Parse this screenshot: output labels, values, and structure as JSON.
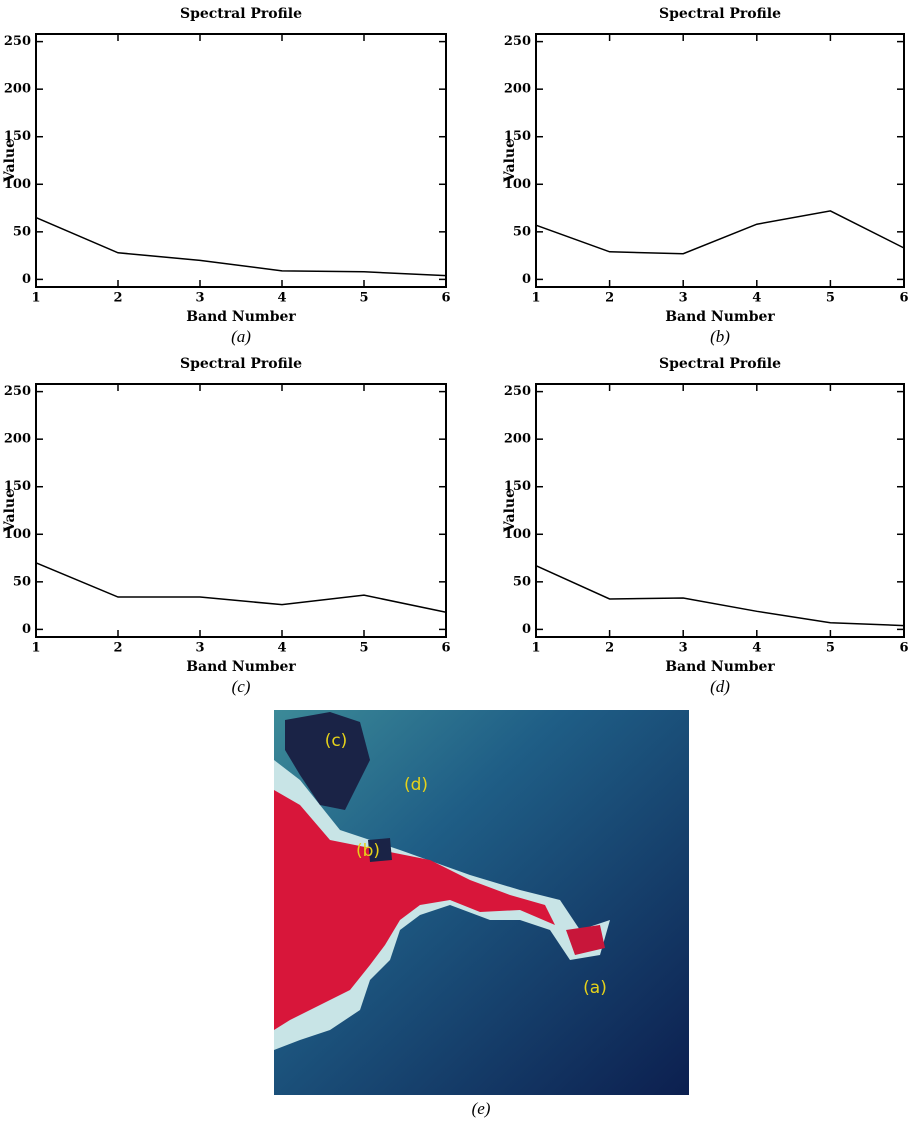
{
  "chart_data": [
    {
      "type": "line",
      "title": "Spectral Profile",
      "xlabel": "Band Number",
      "ylabel": "Value",
      "caption": "(a)",
      "x": [
        1,
        2,
        3,
        4,
        5,
        6
      ],
      "values": [
        65,
        28,
        20,
        9,
        8,
        4
      ],
      "color": "#000000",
      "xlim": [
        1,
        6
      ],
      "ylim": [
        -8,
        258
      ],
      "xticks": [
        1,
        2,
        3,
        4,
        5,
        6
      ],
      "yticks": [
        0,
        50,
        100,
        150,
        200,
        250
      ]
    },
    {
      "type": "line",
      "title": "Spectral Profile",
      "xlabel": "Band Number",
      "ylabel": "Value",
      "caption": "(b)",
      "x": [
        1,
        2,
        3,
        4,
        5,
        6
      ],
      "values": [
        57,
        29,
        27,
        58,
        72,
        33
      ],
      "color": "#000000",
      "xlim": [
        1,
        6
      ],
      "ylim": [
        -8,
        258
      ],
      "xticks": [
        1,
        2,
        3,
        4,
        5,
        6
      ],
      "yticks": [
        0,
        50,
        100,
        150,
        200,
        250
      ]
    },
    {
      "type": "line",
      "title": "Spectral Profile",
      "xlabel": "Band Number",
      "ylabel": "Value",
      "caption": "(c)",
      "x": [
        1,
        2,
        3,
        4,
        5,
        6
      ],
      "values": [
        70,
        34,
        34,
        26,
        36,
        18
      ],
      "color": "#000000",
      "xlim": [
        1,
        6
      ],
      "ylim": [
        -8,
        258
      ],
      "xticks": [
        1,
        2,
        3,
        4,
        5,
        6
      ],
      "yticks": [
        0,
        50,
        100,
        150,
        200,
        250
      ]
    },
    {
      "type": "line",
      "title": "Spectral Profile",
      "xlabel": "Band Number",
      "ylabel": "Value",
      "caption": "(d)",
      "x": [
        1,
        2,
        3,
        4,
        5,
        6
      ],
      "values": [
        67,
        32,
        33,
        19,
        7,
        4
      ],
      "color": "#000000",
      "xlim": [
        1,
        6
      ],
      "ylim": [
        -8,
        258
      ],
      "xticks": [
        1,
        2,
        3,
        4,
        5,
        6
      ],
      "yticks": [
        0,
        50,
        100,
        150,
        200,
        250
      ]
    }
  ],
  "image": {
    "labels": [
      "(c)",
      "(d)",
      "(b)",
      "(a)"
    ],
    "caption": "(e)"
  }
}
